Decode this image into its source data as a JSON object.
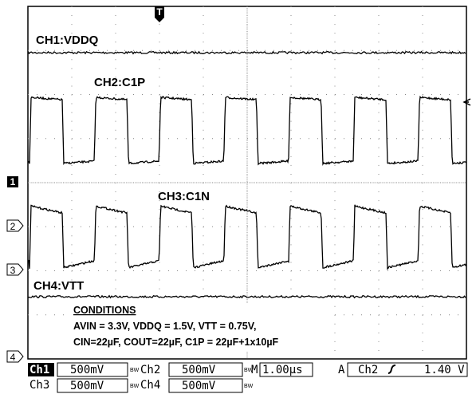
{
  "trigger": "T",
  "markers": [
    "1",
    "2",
    "3",
    "4"
  ],
  "traces": {
    "ch1": "CH1:VDDQ",
    "ch2": "CH2:C1P",
    "ch3": "CH3:C1N",
    "ch4": "CH4:VTT"
  },
  "conditions": {
    "title": "CONDITIONS",
    "lines": [
      "AVIN = 3.3V, VDDQ = 1.5V, VTT = 0.75V,",
      "CIN=22µF, COUT=22µF, C1P = 22µF+1x10µF"
    ]
  },
  "status": {
    "ch1": {
      "name": "Ch1",
      "scale": "500mV",
      "bw": "BW"
    },
    "ch2": {
      "name": "Ch2",
      "scale": "500mV",
      "bw": "BW"
    },
    "ch3": {
      "name": "Ch3",
      "scale": "500mV",
      "bw": "BW"
    },
    "ch4": {
      "name": "Ch4",
      "scale": "500mV",
      "bw": "BW"
    },
    "timebase": {
      "mode": "M",
      "value": "1.00µs"
    },
    "trig": {
      "mode": "A",
      "source": "Ch2",
      "level": "1.40 V"
    }
  }
}
